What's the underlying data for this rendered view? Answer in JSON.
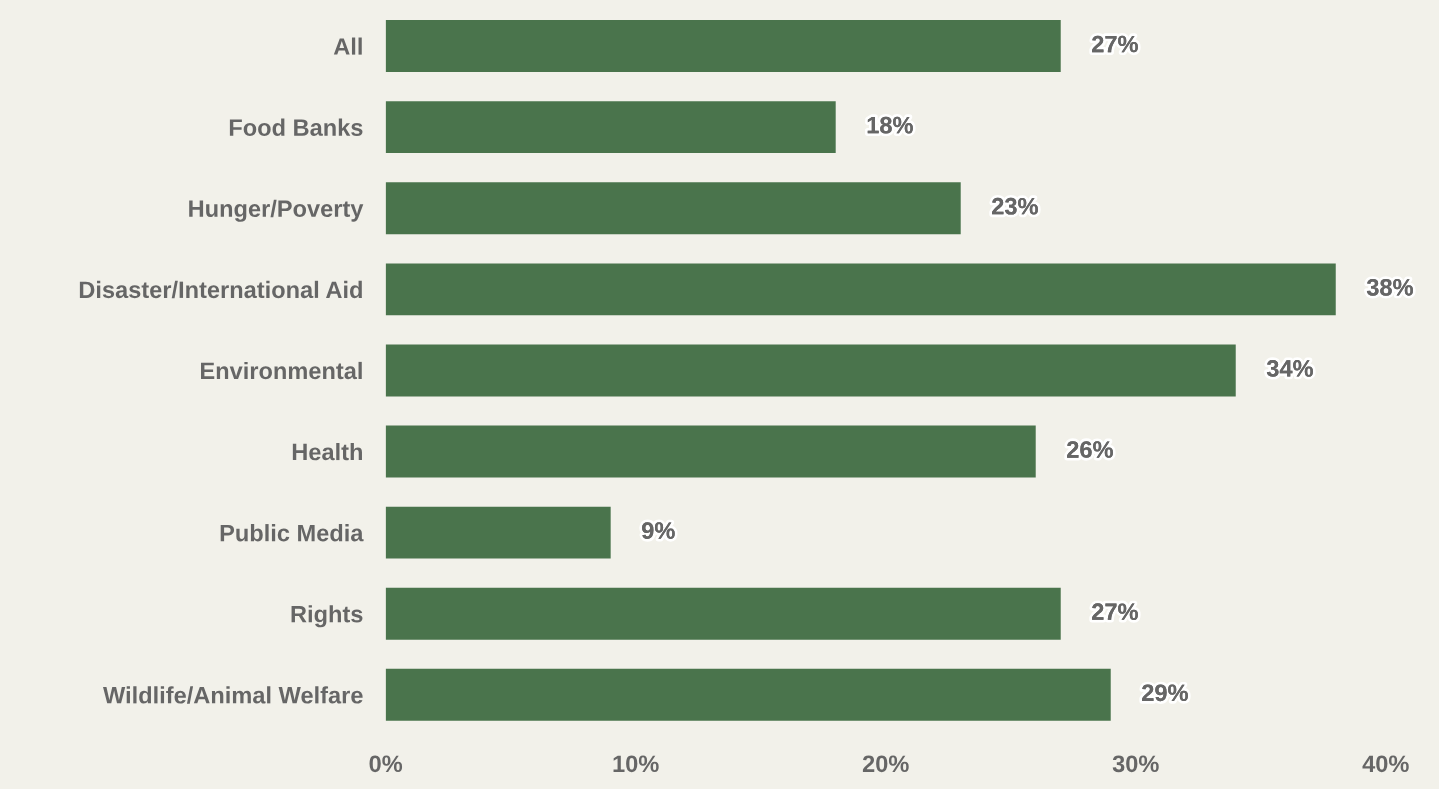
{
  "chart_data": {
    "type": "bar",
    "orientation": "horizontal",
    "categories": [
      "All",
      "Food Banks",
      "Hunger/Poverty",
      "Disaster/International Aid",
      "Environmental",
      "Health",
      "Public Media",
      "Rights",
      "Wildlife/Animal Welfare"
    ],
    "values": [
      27,
      18,
      23,
      38,
      34,
      26,
      9,
      27,
      29
    ],
    "value_labels": [
      "27%",
      "18%",
      "23%",
      "38%",
      "34%",
      "26%",
      "9%",
      "27%",
      "29%"
    ],
    "color": "#4a744c",
    "xlim": [
      0,
      40
    ],
    "xticks": [
      {
        "value": 0,
        "label": "0%"
      },
      {
        "value": 10,
        "label": "10%"
      },
      {
        "value": 20,
        "label": "20%"
      },
      {
        "value": 30,
        "label": "30%"
      },
      {
        "value": 40,
        "label": "40%"
      }
    ],
    "grid": false,
    "legend": false
  }
}
